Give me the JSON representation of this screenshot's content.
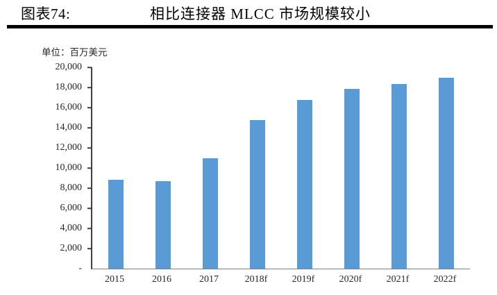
{
  "figure": {
    "label": "图表74:",
    "title": "相比连接器 MLCC 市场规模较小",
    "unit_label": "单位：百万美元"
  },
  "chart_data": {
    "type": "bar",
    "title": "相比连接器 MLCC 市场规模较小",
    "unit": "百万美元",
    "categories": [
      "2015",
      "2016",
      "2017",
      "2018f",
      "2019f",
      "2020f",
      "2021f",
      "2022f"
    ],
    "values": [
      8850,
      8700,
      11000,
      14750,
      16750,
      17850,
      18350,
      18950
    ],
    "xlabel": "",
    "ylabel": "单位：百万美元",
    "ylim": [
      0,
      20000
    ],
    "y_ticks": [
      {
        "label": "20,000",
        "value": 20000
      },
      {
        "label": "18,000",
        "value": 18000
      },
      {
        "label": "16,000",
        "value": 16000
      },
      {
        "label": "14,000",
        "value": 14000
      },
      {
        "label": "12,000",
        "value": 12000
      },
      {
        "label": "10,000",
        "value": 10000
      },
      {
        "label": "8,000",
        "value": 8000
      },
      {
        "label": "6,000",
        "value": 6000
      },
      {
        "label": "4,000",
        "value": 4000
      },
      {
        "label": "2,000",
        "value": 2000
      },
      {
        "label": "-",
        "value": 0
      }
    ],
    "bar_color": "#5B9BD5",
    "axis_color": "#3f3f3f",
    "baseline_color": "#808080",
    "grid": false,
    "legend": "none"
  }
}
